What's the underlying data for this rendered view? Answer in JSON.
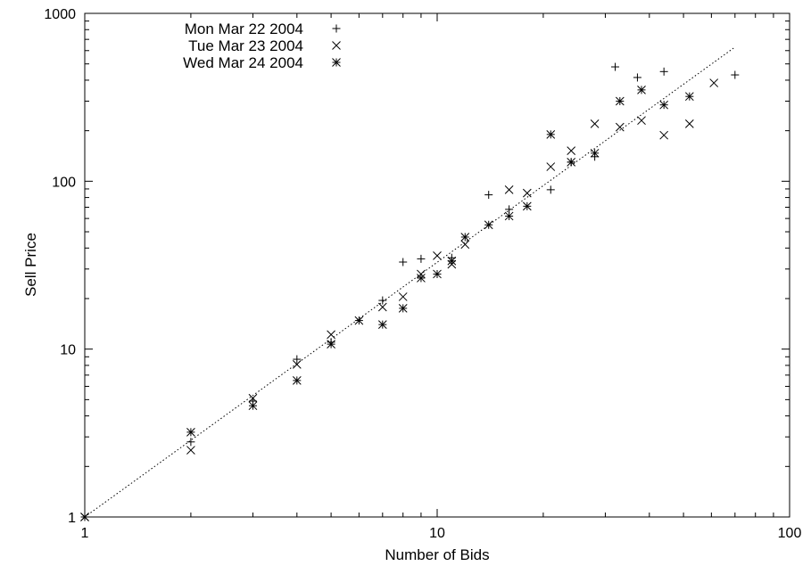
{
  "chart_data": {
    "type": "scatter",
    "title": "",
    "xlabel": "Number of Bids",
    "ylabel": "Sell Price",
    "xscale": "log",
    "yscale": "log",
    "xlim": [
      1,
      100
    ],
    "ylim": [
      1,
      1000
    ],
    "xticks": [
      1,
      10,
      100
    ],
    "yticks": [
      1,
      10,
      100,
      1000
    ],
    "xtick_labels": [
      "1",
      "10",
      "100"
    ],
    "ytick_labels": [
      "1",
      "10",
      "100",
      "1000"
    ],
    "grid": false,
    "legend_position": "top-left",
    "series": [
      {
        "name": "Mon Mar 22 2004",
        "marker": "plus",
        "color": "#000000",
        "points": [
          [
            1,
            1
          ],
          [
            2,
            2.8
          ],
          [
            3,
            4.9
          ],
          [
            4,
            8.7
          ],
          [
            5,
            11
          ],
          [
            7,
            19.5
          ],
          [
            8,
            33
          ],
          [
            9,
            34.5
          ],
          [
            11,
            35
          ],
          [
            14,
            83
          ],
          [
            16,
            68
          ],
          [
            21,
            89
          ],
          [
            24,
            130
          ],
          [
            28,
            140
          ],
          [
            32,
            480
          ],
          [
            37,
            415
          ],
          [
            44,
            450
          ],
          [
            70,
            430
          ]
        ]
      },
      {
        "name": "Tue Mar 23 2004",
        "marker": "cross",
        "color": "#000000",
        "points": [
          [
            1,
            1
          ],
          [
            2,
            2.5
          ],
          [
            3,
            5.1
          ],
          [
            4,
            8.1
          ],
          [
            5,
            12.2
          ],
          [
            7,
            17.8
          ],
          [
            8,
            20.5
          ],
          [
            9,
            28
          ],
          [
            10,
            36
          ],
          [
            11,
            32
          ],
          [
            12,
            42
          ],
          [
            16,
            89
          ],
          [
            18,
            85
          ],
          [
            21,
            122
          ],
          [
            24,
            152
          ],
          [
            28,
            220
          ],
          [
            33,
            210
          ],
          [
            38,
            230
          ],
          [
            44,
            188
          ],
          [
            52,
            220
          ],
          [
            61,
            385
          ]
        ]
      },
      {
        "name": "Wed Mar 24 2004",
        "marker": "asterisk",
        "color": "#000000",
        "points": [
          [
            1,
            1
          ],
          [
            2,
            3.2
          ],
          [
            3,
            4.6
          ],
          [
            4,
            6.5
          ],
          [
            5,
            10.7
          ],
          [
            6,
            14.8
          ],
          [
            7,
            14
          ],
          [
            8,
            17.5
          ],
          [
            9,
            26.5
          ],
          [
            10,
            28
          ],
          [
            11,
            33.5
          ],
          [
            12,
            46.5
          ],
          [
            14,
            55
          ],
          [
            16,
            62
          ],
          [
            18,
            71
          ],
          [
            21,
            190
          ],
          [
            24,
            130
          ],
          [
            28,
            147
          ],
          [
            33,
            300
          ],
          [
            38,
            350
          ],
          [
            44,
            285
          ],
          [
            52,
            320
          ]
        ]
      }
    ],
    "fit_line": {
      "style": "dotted",
      "color": "#000000",
      "points": [
        [
          1,
          1
        ],
        [
          70,
          630
        ]
      ]
    }
  }
}
